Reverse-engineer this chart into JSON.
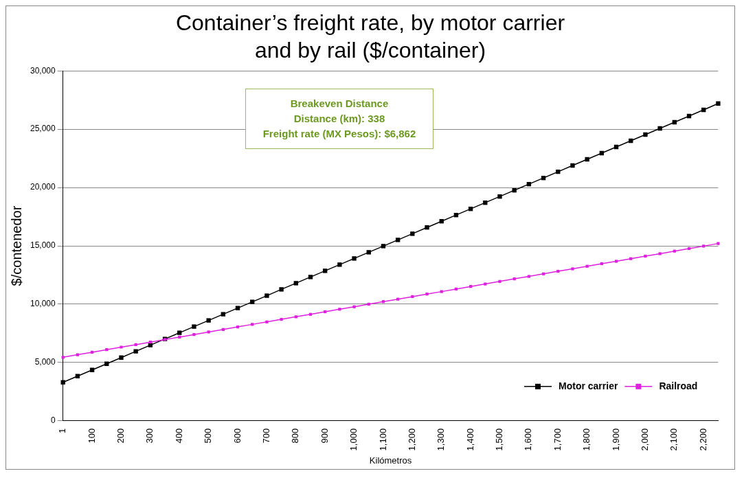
{
  "chart_data": {
    "type": "line",
    "title": "Container’s freight rate, by motor carrier and by rail ($/container)",
    "xlabel": "Kilómetros",
    "ylabel": "$/contenedor",
    "categories": [
      "1",
      null,
      "100",
      null,
      "200",
      null,
      "300",
      null,
      "400",
      null,
      "500",
      null,
      "600",
      null,
      "700",
      null,
      "800",
      null,
      "900",
      null,
      "1,000",
      null,
      "1,100",
      null,
      "1,200",
      null,
      "1,300",
      null,
      "1,400",
      null,
      "1,500",
      null,
      "1,600",
      null,
      "1,700",
      null,
      "1,800",
      null,
      "1,900",
      null,
      "2,000",
      null,
      "2,100",
      null,
      "2,200",
      null
    ],
    "series": [
      {
        "name": "Motor carrier",
        "color": "#000000",
        "values": [
          3300,
          3830,
          4360,
          4890,
          5420,
          5960,
          6490,
          7020,
          7550,
          8080,
          8610,
          9140,
          9670,
          10200,
          10730,
          11270,
          11800,
          12330,
          12860,
          13390,
          13920,
          14450,
          14980,
          15510,
          16040,
          16580,
          17110,
          17640,
          18170,
          18700,
          19230,
          19760,
          20290,
          20820,
          21350,
          21890,
          22420,
          22950,
          23480,
          24010,
          24540,
          25070,
          25600,
          26130,
          26660,
          27200
        ]
      },
      {
        "name": "Railroad",
        "color": "#e020e0",
        "values": [
          5450,
          5670,
          5880,
          6100,
          6320,
          6530,
          6750,
          6970,
          7180,
          7400,
          7620,
          7830,
          8050,
          8270,
          8480,
          8700,
          8920,
          9130,
          9350,
          9570,
          9780,
          10000,
          10220,
          10430,
          10650,
          10870,
          11080,
          11300,
          11520,
          11730,
          11950,
          12170,
          12380,
          12600,
          12820,
          13030,
          13250,
          13470,
          13680,
          13900,
          14120,
          14330,
          14550,
          14770,
          14980,
          15200
        ]
      }
    ],
    "ylim": [
      0,
      30000
    ],
    "yticks": [
      0,
      {
        "value": 5000,
        "label": "5,000"
      },
      {
        "value": 10000,
        "label": "10,000"
      },
      {
        "value": 15000,
        "label": "15,000"
      },
      {
        "value": 20000,
        "label": "20,000"
      },
      {
        "value": 25000,
        "label": "25,000"
      },
      {
        "value": 30000,
        "label": "30,000"
      }
    ],
    "grid": "y",
    "marker": "square",
    "line_style": "solid",
    "legend": "bottom right",
    "annotations": [
      "Breakeven Distance",
      "Distance (km): 338",
      "Freight rate (MX Pesos): $6,862"
    ]
  }
}
